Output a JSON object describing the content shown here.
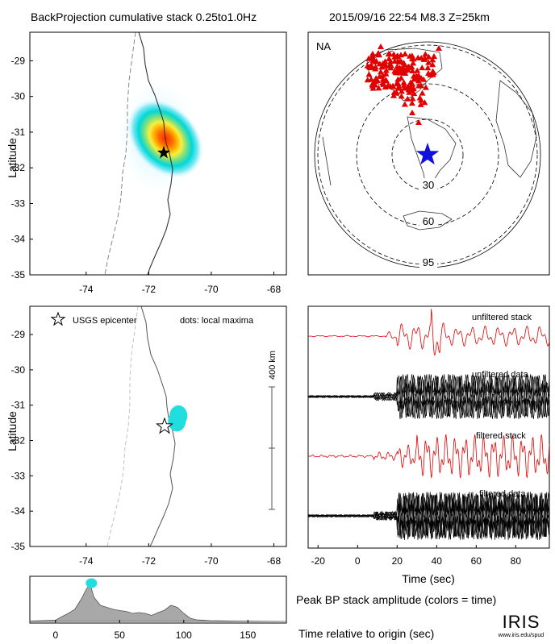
{
  "header": {
    "title": "BackProjection cumulative stack 0.25to1.0Hz",
    "event": "2015/09/16 22:54   M8.3   Z=25km"
  },
  "footer": {
    "logo": "IRIS",
    "logo_url": "www.iris.edu/spud"
  },
  "colors": {
    "coast": "#333333",
    "trench": "#888888",
    "stations": "#e00000",
    "epicenter_star": "#1010e0",
    "max_dot": "#22dddd",
    "filtered_stack": "#e00000",
    "data_trace": "#000000",
    "amp_fill": "#a8a8a8"
  },
  "chart_data": [
    {
      "id": "bp-map",
      "type": "heatmap",
      "xlabel": "",
      "ylabel": "Latitude",
      "xlim": [
        -75.8,
        -67.6
      ],
      "ylim": [
        -35,
        -28.2
      ],
      "xticks": [
        "-74",
        "-72",
        "-70",
        "-68"
      ],
      "yticks": [
        "-29",
        "-30",
        "-31",
        "-32",
        "-33",
        "-34",
        "-35"
      ],
      "peak": {
        "lon": -71.2,
        "lat": -31.25
      },
      "epicenter": {
        "lon": -71.7,
        "lat": -31.55
      },
      "colormap": [
        "#bfefff",
        "#60e0f0",
        "#00d8d8",
        "#7ee07e",
        "#f6f040",
        "#ff9a00",
        "#ff2a00"
      ]
    },
    {
      "id": "station-globe",
      "type": "scatter",
      "label": "NA",
      "rings": [
        "30",
        "60",
        "95"
      ]
    },
    {
      "id": "maxima-map",
      "type": "scatter",
      "xlabel": "",
      "ylabel": "Latitude",
      "xlim": [
        -75.8,
        -67.6
      ],
      "ylim": [
        -35,
        -28.2
      ],
      "xticks": [
        "-74",
        "-72",
        "-70",
        "-68"
      ],
      "yticks": [
        "-29",
        "-30",
        "-31",
        "-32",
        "-33",
        "-34",
        "-35"
      ],
      "legend_epicenter": "USGS epicenter",
      "legend_dots": "dots: local maxima",
      "scale_bar": "400 km",
      "epicenter": {
        "lon": -71.7,
        "lat": -31.55
      },
      "maxima": [
        {
          "lon": -71.05,
          "lat": -31.3
        },
        {
          "lon": -71.1,
          "lat": -31.45
        }
      ]
    },
    {
      "id": "traces",
      "type": "line",
      "xlabel": "Time (sec)",
      "xlim": [
        -25,
        97
      ],
      "xticks": [
        "-20",
        "0",
        "20",
        "40",
        "60",
        "80"
      ],
      "series": [
        {
          "name": "unfiltered stack"
        },
        {
          "name": "unfiltered data"
        },
        {
          "name": "filtered stack"
        },
        {
          "name": "filtered data"
        }
      ]
    },
    {
      "id": "peak-amplitude",
      "type": "area",
      "title": "Peak BP stack amplitude (colors = time)",
      "xlabel": "Time relative to origin (sec)",
      "xlim": [
        -20,
        180
      ],
      "xticks": [
        "0",
        "50",
        "100",
        "150"
      ],
      "x": [
        -20,
        0,
        5,
        10,
        15,
        20,
        24,
        27,
        30,
        35,
        40,
        45,
        50,
        55,
        60,
        65,
        70,
        75,
        80,
        85,
        90,
        95,
        100,
        105,
        110,
        120,
        140,
        180
      ],
      "values": [
        0.01,
        0.03,
        0.12,
        0.2,
        0.3,
        0.55,
        0.8,
        0.92,
        0.6,
        0.4,
        0.35,
        0.3,
        0.27,
        0.25,
        0.2,
        0.22,
        0.2,
        0.15,
        0.22,
        0.28,
        0.4,
        0.35,
        0.2,
        0.08,
        0.04,
        0.02,
        0.01,
        0.0
      ],
      "peak_marker": {
        "x": 28,
        "y": 0.95
      }
    }
  ]
}
